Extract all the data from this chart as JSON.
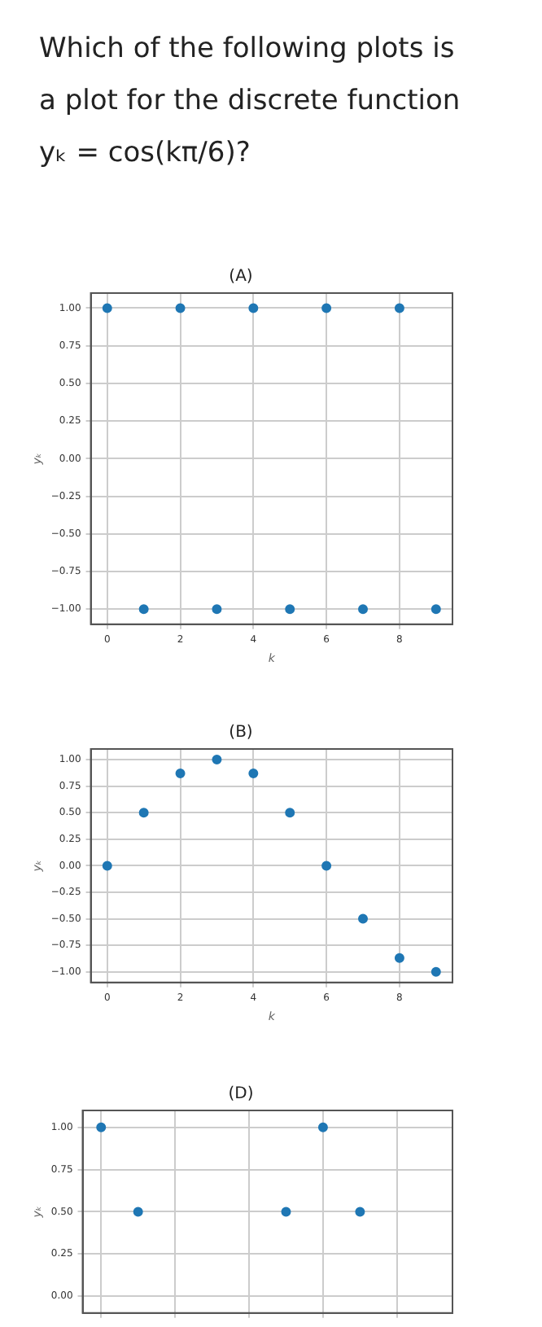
{
  "chart_data": [
    {
      "type": "scatter",
      "title": "Which of the following plots is a plot for the discrete function yₖ = cos(kπ/6)?",
      "subtitle": "(A)",
      "xlabel": "k",
      "ylabel": "yₖ",
      "marker": "circle",
      "grid": true,
      "xlim": [
        -0.45,
        9.45
      ],
      "ylim": [
        -1.1,
        1.1
      ],
      "xticks": [
        0,
        2,
        4,
        6,
        8
      ],
      "yticks": [
        {
          "value": -1,
          "label": "−1.00"
        },
        {
          "value": -0.75,
          "label": "−0.75"
        },
        {
          "value": -0.5,
          "label": "−0.50"
        },
        {
          "value": -0.25,
          "label": "−0.25"
        },
        {
          "value": 0,
          "label": "0.00"
        },
        {
          "value": 0.25,
          "label": "0.25"
        },
        {
          "value": 0.5,
          "label": "0.50"
        },
        {
          "value": 0.75,
          "label": "0.75"
        },
        {
          "value": 1,
          "label": "1.00"
        }
      ],
      "series": [
        {
          "color": "#1f77b4",
          "x": [
            0,
            1,
            2,
            3,
            4,
            5,
            6,
            7,
            8,
            9
          ],
          "values": [
            1,
            -1,
            1,
            -1,
            1,
            -1,
            1,
            -1,
            1,
            -1
          ]
        }
      ]
    },
    {
      "type": "scatter",
      "title": "(B)",
      "xlabel": "k",
      "ylabel": "yₖ",
      "marker": "circle",
      "grid": true,
      "xlim": [
        -0.45,
        9.45
      ],
      "ylim": [
        -1.1,
        1.1
      ],
      "xticks": [
        0,
        2,
        4,
        6,
        8
      ],
      "yticks": [
        {
          "value": -1,
          "label": "−1.00"
        },
        {
          "value": -0.75,
          "label": "−0.75"
        },
        {
          "value": -0.5,
          "label": "−0.50"
        },
        {
          "value": -0.25,
          "label": "−0.25"
        },
        {
          "value": 0,
          "label": "0.00"
        },
        {
          "value": 0.25,
          "label": "0.25"
        },
        {
          "value": 0.5,
          "label": "0.50"
        },
        {
          "value": 0.75,
          "label": "0.75"
        },
        {
          "value": 1,
          "label": "1.00"
        }
      ],
      "series": [
        {
          "color": "#1f77b4",
          "x": [
            0,
            1,
            2,
            3,
            4,
            5,
            6,
            7,
            8,
            9
          ],
          "values": [
            0,
            0.5,
            0.87,
            1,
            0.87,
            0.5,
            0,
            -0.5,
            -0.87,
            -1
          ]
        }
      ]
    },
    {
      "type": "scatter",
      "title": "(D)",
      "ylabel": "yₖ",
      "marker": "circle",
      "grid": true,
      "tick_labels": "y",
      "ylim": [
        -0.1,
        1.1
      ],
      "categories": [
        null,
        null,
        null,
        null,
        null,
        null,
        null,
        null,
        null,
        null
      ],
      "yticks": [
        {
          "value": 0,
          "label": "0.00"
        },
        {
          "value": 0.25,
          "label": "0.25"
        },
        {
          "value": 0.5,
          "label": "0.50"
        },
        {
          "value": 0.75,
          "label": "0.75"
        },
        {
          "value": 1,
          "label": "1.00"
        }
      ],
      "series": [
        {
          "color": "#1f77b4",
          "values": [
            1,
            0.5,
            null,
            null,
            null,
            0.5,
            1,
            0.5,
            null,
            null
          ]
        }
      ]
    }
  ]
}
